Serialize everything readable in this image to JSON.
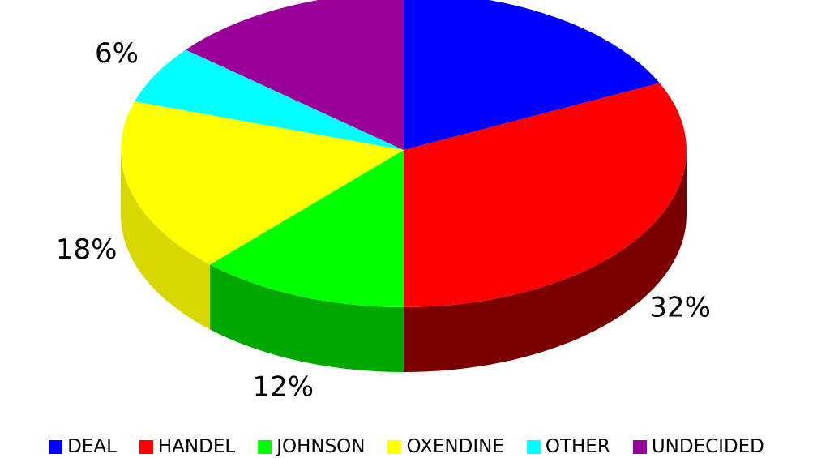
{
  "chart_data": {
    "type": "pie",
    "style": "3d",
    "legend_position": "bottom",
    "slices": [
      {
        "label": "DEAL",
        "value": 18,
        "display": "18%",
        "color": "#0000FF",
        "side_color": "#000080"
      },
      {
        "label": "HANDEL",
        "value": 32,
        "display": "32%",
        "color": "#FF0000",
        "side_color": "#7A0000"
      },
      {
        "label": "JOHNSON",
        "value": 12,
        "display": "12%",
        "color": "#00FF00",
        "side_color": "#00A800"
      },
      {
        "label": "OXENDINE",
        "value": 18,
        "display": "18%",
        "color": "#FFFF00",
        "side_color": "#D8D800"
      },
      {
        "label": "OTHER",
        "value": 6,
        "display": "6%",
        "color": "#00FFFF",
        "side_color": "#00A8A8"
      },
      {
        "label": "UNDECIDED",
        "value": 14,
        "display": "14%",
        "color": "#990099",
        "side_color": "#550055"
      }
    ]
  }
}
